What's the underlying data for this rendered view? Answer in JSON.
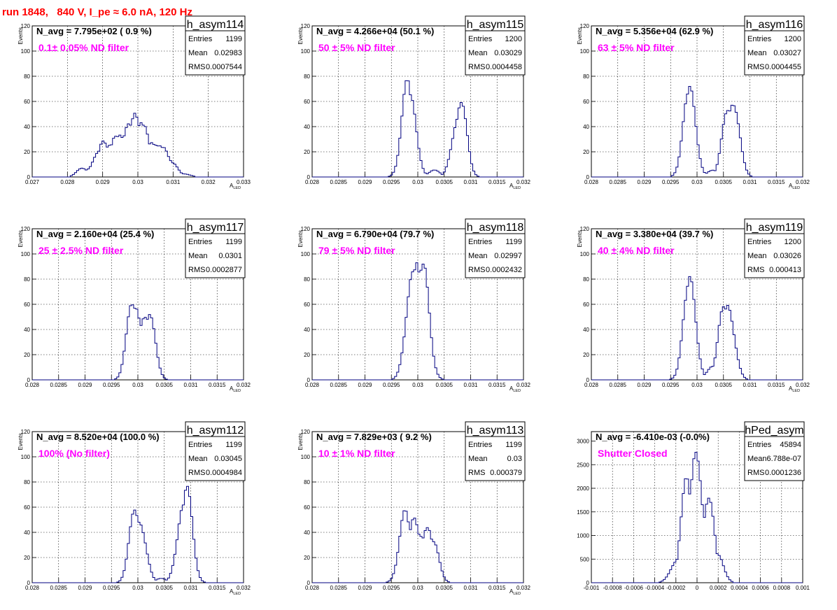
{
  "page_title": "run 1848,   840 V, I_pe ≈ 6.0 nA, 120 Hz",
  "colors": {
    "title": "#ff0000",
    "annotation": "#ff00ff",
    "histogram_line": "#000080",
    "grid": "#000000"
  },
  "chart_data": [
    {
      "type": "bar",
      "subtype": "histogram",
      "stat_title": "h_asym114",
      "stats": {
        "Entries": "1199",
        "Mean": "0.02983",
        "RMS": "0.0007544"
      },
      "n_avg_text": "N_avg = 7.795e+02 ( 0.9 %)",
      "annotation": "0.1± 0.05% ND filter",
      "ylabel": "Events",
      "xlabel": "A",
      "xlabel_sub": "LED",
      "xlim": [
        0.027,
        0.033
      ],
      "ylim": [
        0,
        120
      ],
      "xticks": [
        "0.027",
        "0.028",
        "0.029",
        "0.03",
        "0.031",
        "0.032",
        "0.033"
      ],
      "yticks": [
        "0",
        "20",
        "40",
        "60",
        "80",
        "100",
        "120"
      ],
      "grid": true,
      "x": [
        0.02845,
        0.02875,
        0.02885,
        0.029,
        0.0292,
        0.0294,
        0.0295,
        0.0296,
        0.0297,
        0.0298,
        0.0299,
        0.03,
        0.0301,
        0.0302,
        0.0303,
        0.0304,
        0.0305,
        0.0306,
        0.0307,
        0.0308,
        0.031,
        0.0313
      ],
      "values": [
        7,
        12,
        20,
        25,
        22,
        35,
        40,
        37,
        45,
        40,
        44,
        30,
        38,
        40,
        28,
        33,
        30,
        26,
        22,
        15,
        10,
        3
      ]
    },
    {
      "type": "bar",
      "subtype": "histogram",
      "stat_title": "h_asym115",
      "stats": {
        "Entries": "1200",
        "Mean": "0.03029",
        "RMS": "0.0004458"
      },
      "n_avg_text": "N_avg = 4.266e+04 (50.1 %)",
      "annotation": "50 ± 5% ND filter",
      "ylabel": "Events",
      "xlabel": "A",
      "xlabel_sub": "LED",
      "xlim": [
        0.028,
        0.032
      ],
      "ylim": [
        0,
        120
      ],
      "xticks": [
        "0.028",
        "0.0285",
        "0.029",
        "0.0295",
        "0.03",
        "0.0305",
        "0.031",
        "0.0315",
        "0.032"
      ],
      "yticks": [
        "0",
        "20",
        "40",
        "60",
        "80",
        "100",
        "120"
      ],
      "grid": true,
      "x": [
        0.0298,
        0.02988,
        0.0308,
        0.03076,
        0.0303
      ],
      "values": [
        66,
        57,
        62,
        55,
        5
      ]
    },
    {
      "type": "bar",
      "subtype": "histogram",
      "stat_title": "h_asym116",
      "stats": {
        "Entries": "1200",
        "Mean": "0.03027",
        "RMS": "0.0004455"
      },
      "n_avg_text": "N_avg = 5.356e+04 (62.9 %)",
      "annotation": "63 ± 5% ND filter",
      "ylabel": "Events",
      "xlabel": "A",
      "xlabel_sub": "LED",
      "xlim": [
        0.028,
        0.032
      ],
      "ylim": [
        0,
        120
      ],
      "xticks": [
        "0.028",
        "0.0285",
        "0.029",
        "0.0295",
        "0.03",
        "0.0305",
        "0.031",
        "0.0315",
        "0.032"
      ],
      "yticks": [
        "0",
        "20",
        "40",
        "60",
        "80",
        "100",
        "120"
      ],
      "grid": true,
      "x": [
        0.02988,
        0.02984,
        0.03068,
        0.0306,
        0.03028
      ],
      "values": [
        64,
        57,
        70,
        58,
        5
      ]
    },
    {
      "type": "bar",
      "subtype": "histogram",
      "stat_title": "h_asym117",
      "stats": {
        "Entries": "1199",
        "Mean": "0.0301",
        "RMS": "0.0002877"
      },
      "n_avg_text": "N_avg = 2.160e+04 (25.4 %)",
      "annotation": "25 ± 2.5% ND filter",
      "ylabel": "Events",
      "xlabel": "A",
      "xlabel_sub": "LED",
      "xlim": [
        0.028,
        0.032
      ],
      "ylim": [
        0,
        120
      ],
      "xticks": [
        "0.028",
        "0.0285",
        "0.029",
        "0.0295",
        "0.03",
        "0.0305",
        "0.031",
        "0.0315",
        "0.032"
      ],
      "yticks": [
        "0",
        "20",
        "40",
        "60",
        "80",
        "100",
        "120"
      ],
      "grid": true,
      "x": [
        0.0299,
        0.02998,
        0.03005,
        0.03012,
        0.0302
      ],
      "values": [
        55,
        60,
        52,
        60,
        55
      ]
    },
    {
      "type": "bar",
      "subtype": "histogram",
      "stat_title": "h_asym118",
      "stats": {
        "Entries": "1199",
        "Mean": "0.02997",
        "RMS": "0.0002432"
      },
      "n_avg_text": "N_avg = 6.790e+04 (79.7 %)",
      "annotation": "79 ± 5% ND filter",
      "ylabel": "Events",
      "xlabel": "A",
      "xlabel_sub": "LED",
      "xlim": [
        0.028,
        0.032
      ],
      "ylim": [
        0,
        120
      ],
      "xticks": [
        "0.028",
        "0.0285",
        "0.029",
        "0.0295",
        "0.03",
        "0.0305",
        "0.031",
        "0.0315",
        "0.032"
      ],
      "yticks": [
        "0",
        "20",
        "40",
        "60",
        "80",
        "100",
        "120"
      ],
      "grid": true,
      "x": [
        0.02988,
        0.02996,
        0.03004,
        0.03012
      ],
      "values": [
        90,
        85,
        75,
        80
      ]
    },
    {
      "type": "bar",
      "subtype": "histogram",
      "stat_title": "h_asym119",
      "stats": {
        "Entries": "1200",
        "Mean": "0.03026",
        "RMS": "0.000413"
      },
      "n_avg_text": "N_avg = 3.380e+04 (39.7 %)",
      "annotation": "40 ± 4% ND filter",
      "ylabel": "Events",
      "xlabel": "A",
      "xlabel_sub": "LED",
      "xlim": [
        0.028,
        0.032
      ],
      "ylim": [
        0,
        120
      ],
      "xticks": [
        "0.028",
        "0.0285",
        "0.029",
        "0.0295",
        "0.03",
        "0.0305",
        "0.031",
        "0.0315",
        "0.032"
      ],
      "yticks": [
        "0",
        "20",
        "40",
        "60",
        "80",
        "100",
        "120"
      ],
      "grid": true,
      "x": [
        0.02988,
        0.02984,
        0.0306,
        0.03052,
        0.03028
      ],
      "values": [
        73,
        62,
        65,
        55,
        10
      ]
    },
    {
      "type": "bar",
      "subtype": "histogram",
      "stat_title": "h_asym112",
      "stats": {
        "Entries": "1199",
        "Mean": "0.03045",
        "RMS": "0.0004984"
      },
      "n_avg_text": "N_avg = 8.520e+04 (100.0 %)",
      "annotation": "100% (No filter)",
      "ylabel": "Events",
      "xlabel": "A",
      "xlabel_sub": "LED",
      "xlim": [
        0.028,
        0.032
      ],
      "ylim": [
        0,
        120
      ],
      "xticks": [
        "0.028",
        "0.0285",
        "0.029",
        "0.0295",
        "0.03",
        "0.0305",
        "0.031",
        "0.0315",
        "0.032"
      ],
      "yticks": [
        "0",
        "20",
        "40",
        "60",
        "80",
        "100",
        "120"
      ],
      "grid": true,
      "x": [
        0.02996,
        0.03004,
        0.03092,
        0.03084,
        0.03045
      ],
      "values": [
        58,
        56,
        67,
        60,
        3
      ]
    },
    {
      "type": "bar",
      "subtype": "histogram",
      "stat_title": "h_asym113",
      "stats": {
        "Entries": "1199",
        "Mean": "0.03",
        "RMS": "0.000379"
      },
      "n_avg_text": "N_avg = 7.829e+03 ( 9.2 %)",
      "annotation": "10 ± 1% ND filter",
      "ylabel": "Events",
      "xlabel": "A",
      "xlabel_sub": "LED",
      "xlim": [
        0.028,
        0.032
      ],
      "ylim": [
        0,
        120
      ],
      "xticks": [
        "0.028",
        "0.0285",
        "0.029",
        "0.0295",
        "0.03",
        "0.0305",
        "0.031",
        "0.0315",
        "0.032"
      ],
      "yticks": [
        "0",
        "20",
        "40",
        "60",
        "80",
        "100",
        "120"
      ],
      "grid": true,
      "x": [
        0.02975,
        0.02995,
        0.03004,
        0.03016,
        0.03028
      ],
      "values": [
        50,
        51,
        45,
        50,
        30
      ]
    },
    {
      "type": "bar",
      "subtype": "histogram",
      "stat_title": "hPed_asym",
      "stats": {
        "Entries": "45894",
        "Mean": "6.788e-07",
        "RMS": "0.0001236"
      },
      "n_avg_text": "N_avg = -6.410e-03 (-0.0%)",
      "annotation": "Shutter Closed",
      "ylabel": "",
      "xlabel": "",
      "xlim": [
        -0.001,
        0.001
      ],
      "ylim": [
        0,
        3200
      ],
      "xticks": [
        "-0.001",
        "-0.0008",
        "-0.0006",
        "-0.0004",
        "-0.0002",
        "0",
        "0.0002",
        "0.0004",
        "0.0006",
        "0.0008",
        "0.001"
      ],
      "yticks": [
        "0",
        "500",
        "1000",
        "1500",
        "2000",
        "2500",
        "3000"
      ],
      "grid": true,
      "x": [
        -0.0002,
        -0.0001,
        0.0,
        0.0001,
        0.0002
      ],
      "values": [
        500,
        1900,
        3000,
        1900,
        500
      ]
    }
  ]
}
